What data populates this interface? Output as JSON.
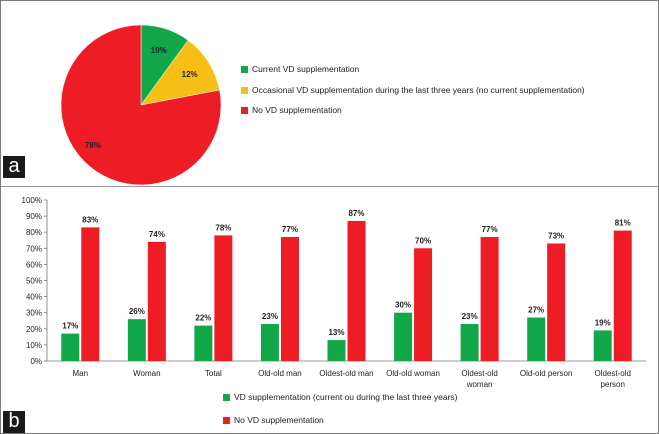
{
  "panels": {
    "a_label": "a",
    "b_label": "b"
  },
  "colors": {
    "green": "#12a84a",
    "yellow": "#f7bf15",
    "red": "#ee1c25"
  },
  "chart_data": [
    {
      "type": "pie",
      "slices": [
        {
          "label": "Current VD supplementation",
          "value": 10,
          "display": "10%",
          "color": "#12a84a"
        },
        {
          "label": "Occasional VD supplementation  during the last three years (no current supplementation)",
          "value": 12,
          "display": "12%",
          "color": "#f7bf15"
        },
        {
          "label": "No VD supplementation",
          "value": 78,
          "display": "78%",
          "color": "#ee1c25"
        }
      ],
      "legend_placement": "right"
    },
    {
      "type": "bar",
      "categories": [
        "Man",
        "Woman",
        "Total",
        "Old-old man",
        "Oldest-old man",
        "Old-old woman",
        "Oldest-old woman",
        "Old-old person",
        "Oldest-old person"
      ],
      "series": [
        {
          "name": "VD supplementation (current ou during the last three years)",
          "values": [
            17,
            26,
            22,
            23,
            13,
            30,
            23,
            27,
            19
          ],
          "color": "#12a84a"
        },
        {
          "name": "No VD supplementation",
          "values": [
            83,
            74,
            78,
            77,
            87,
            70,
            77,
            73,
            81
          ],
          "color": "#ee1c25"
        }
      ],
      "ylim": [
        0,
        100
      ],
      "yticks": [
        "0%",
        "10%",
        "20%",
        "30%",
        "40%",
        "50%",
        "60%",
        "70%",
        "80%",
        "90%",
        "100%"
      ],
      "legend_placement": "bottom"
    }
  ]
}
